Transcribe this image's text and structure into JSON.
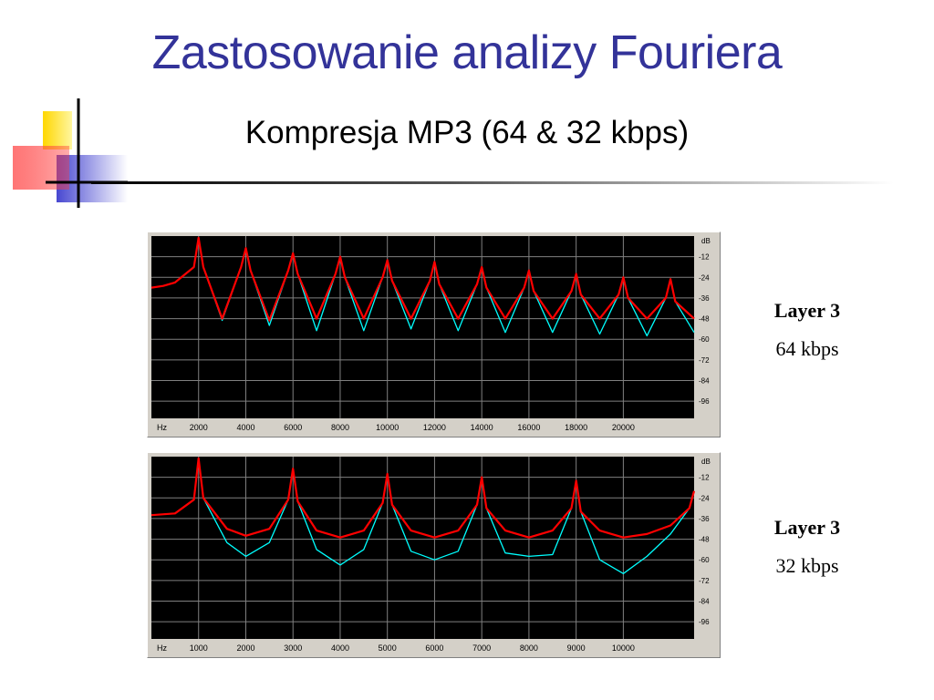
{
  "slide": {
    "title": "Zastosowanie analizy Fouriera",
    "subtitle": "Kompresja MP3 (64 & 32 kbps)"
  },
  "colors": {
    "title": "#333399",
    "plot_background": "#000000",
    "grid": "#808080",
    "panel": "#d4d0c8",
    "original_series": "#00ffff",
    "compressed_series": "#ff0000",
    "deco_yellow": "#ffd700",
    "deco_red": "#ff3333",
    "deco_blue": "#3333cc"
  },
  "panels": [
    {
      "label": "Layer 3",
      "rate": "64 kbps"
    },
    {
      "label": "Layer 3",
      "rate": "32 kbps"
    }
  ],
  "chart_data": [
    {
      "type": "line",
      "xlabel": "Hz",
      "ylabel": "dB",
      "xlim": [
        0,
        23000
      ],
      "ylim": [
        -106,
        0
      ],
      "x_ticks": [
        2000,
        4000,
        6000,
        8000,
        10000,
        12000,
        14000,
        16000,
        18000,
        20000
      ],
      "x_tick_labels": [
        "2000",
        "4000",
        "6000",
        "8000",
        "10000",
        "12000",
        "14000",
        "16000",
        "18000",
        "20000"
      ],
      "y_ticks": [
        -12,
        -24,
        -36,
        -48,
        -60,
        -72,
        -84,
        -96
      ],
      "y_tick_labels": [
        "-12",
        "-24",
        "-36",
        "-48",
        "-60",
        "-72",
        "-84",
        "-96"
      ],
      "grid": true,
      "series": [
        {
          "color": "#00ffff",
          "x": [
            0,
            500,
            1000,
            1800,
            2000,
            2200,
            3000,
            3800,
            4000,
            4200,
            5000,
            5800,
            6000,
            6200,
            7000,
            7800,
            8000,
            8200,
            9000,
            9800,
            10000,
            10200,
            11000,
            11800,
            12000,
            12200,
            13000,
            13800,
            14000,
            14200,
            15000,
            15800,
            16000,
            16200,
            17000,
            17800,
            18000,
            18200,
            19000,
            19800,
            20000,
            20200,
            21000,
            21800,
            22000,
            22200,
            23000
          ],
          "y": [
            -30,
            -29,
            -27,
            -18,
            -1,
            -18,
            -49,
            -18,
            -7,
            -20,
            -52,
            -20,
            -10,
            -22,
            -55,
            -22,
            -12,
            -24,
            -55,
            -24,
            -14,
            -26,
            -54,
            -26,
            -15,
            -28,
            -55,
            -28,
            -18,
            -30,
            -56,
            -30,
            -20,
            -32,
            -56,
            -32,
            -22,
            -34,
            -57,
            -34,
            -24,
            -36,
            -58,
            -36,
            -25,
            -38,
            -56
          ]
        },
        {
          "color": "#ff0000",
          "x": [
            0,
            500,
            1000,
            1800,
            2000,
            2200,
            3000,
            3800,
            4000,
            4200,
            5000,
            5800,
            6000,
            6200,
            7000,
            7800,
            8000,
            8200,
            9000,
            9800,
            10000,
            10200,
            11000,
            11800,
            12000,
            12200,
            13000,
            13800,
            14000,
            14200,
            15000,
            15800,
            16000,
            16200,
            17000,
            17800,
            18000,
            18200,
            19000,
            19800,
            20000,
            20200,
            21000,
            21800,
            22000,
            22200,
            23000
          ],
          "y": [
            -30,
            -29,
            -27,
            -18,
            -1,
            -18,
            -48,
            -18,
            -7,
            -20,
            -49,
            -20,
            -10,
            -22,
            -48,
            -22,
            -12,
            -24,
            -48,
            -24,
            -14,
            -26,
            -48,
            -26,
            -15,
            -28,
            -48,
            -28,
            -18,
            -30,
            -48,
            -30,
            -20,
            -32,
            -48,
            -32,
            -22,
            -34,
            -48,
            -34,
            -24,
            -36,
            -48,
            -36,
            -25,
            -38,
            -48
          ]
        }
      ]
    },
    {
      "type": "line",
      "xlabel": "Hz",
      "ylabel": "dB",
      "xlim": [
        0,
        11500
      ],
      "ylim": [
        -106,
        0
      ],
      "x_ticks": [
        1000,
        2000,
        3000,
        4000,
        5000,
        6000,
        7000,
        8000,
        9000,
        10000
      ],
      "x_tick_labels": [
        "1000",
        "2000",
        "3000",
        "4000",
        "5000",
        "6000",
        "7000",
        "8000",
        "9000",
        "10000"
      ],
      "y_ticks": [
        -12,
        -24,
        -36,
        -48,
        -60,
        -72,
        -84,
        -96
      ],
      "y_tick_labels": [
        "-12",
        "-24",
        "-36",
        "-48",
        "-60",
        "-72",
        "-84",
        "-96"
      ],
      "grid": true,
      "series": [
        {
          "color": "#00ffff",
          "x": [
            0,
            500,
            900,
            1000,
            1100,
            1600,
            2000,
            2500,
            2900,
            3000,
            3100,
            3500,
            4000,
            4500,
            4900,
            5000,
            5100,
            5500,
            6000,
            6500,
            6900,
            7000,
            7100,
            7500,
            8000,
            8500,
            8900,
            9000,
            9100,
            9500,
            10000,
            10500,
            11000,
            11400,
            11500
          ],
          "y": [
            -34,
            -33,
            -25,
            -1,
            -24,
            -50,
            -58,
            -50,
            -25,
            -7,
            -26,
            -54,
            -63,
            -54,
            -27,
            -10,
            -28,
            -55,
            -60,
            -55,
            -28,
            -12,
            -30,
            -56,
            -58,
            -57,
            -30,
            -14,
            -32,
            -60,
            -68,
            -58,
            -45,
            -30,
            -20
          ]
        },
        {
          "color": "#ff0000",
          "x": [
            0,
            500,
            900,
            1000,
            1100,
            1600,
            2000,
            2500,
            2900,
            3000,
            3100,
            3500,
            4000,
            4500,
            4900,
            5000,
            5100,
            5500,
            6000,
            6500,
            6900,
            7000,
            7100,
            7500,
            8000,
            8500,
            8900,
            9000,
            9100,
            9500,
            10000,
            10500,
            11000,
            11400,
            11500
          ],
          "y": [
            -34,
            -33,
            -25,
            -1,
            -24,
            -42,
            -46,
            -42,
            -25,
            -7,
            -26,
            -43,
            -47,
            -43,
            -27,
            -10,
            -28,
            -43,
            -47,
            -43,
            -28,
            -12,
            -30,
            -43,
            -47,
            -43,
            -30,
            -14,
            -32,
            -43,
            -47,
            -45,
            -40,
            -30,
            -20
          ]
        }
      ]
    }
  ]
}
